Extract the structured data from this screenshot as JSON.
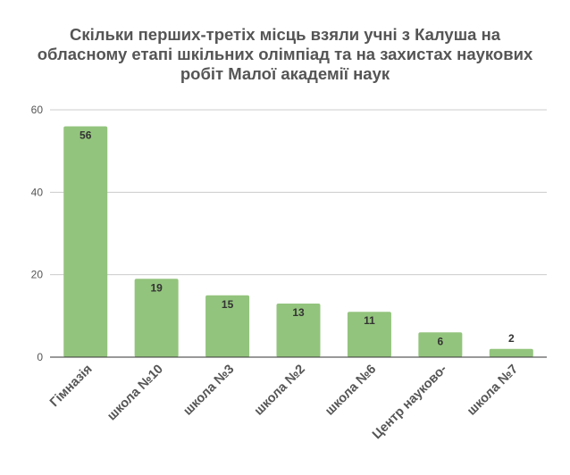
{
  "chart_data": {
    "type": "bar",
    "title_lines": [
      "Скільки перших-третіх місць взяли учні з Калуша на",
      "обласному етапі шкільних олімпіад та на захистах наукових",
      "робіт Малої академії наук"
    ],
    "categories": [
      "Гімназія",
      "школа №10",
      "школа №3",
      "школа №2",
      "школа №6",
      "Центр науково-",
      "школа №7"
    ],
    "values": [
      56,
      19,
      15,
      13,
      11,
      6,
      2
    ],
    "ylim": [
      0,
      60
    ],
    "yticks": [
      0,
      20,
      40,
      60
    ],
    "grid": true,
    "legend": "none",
    "bar_color": "#93c47d",
    "grid_color": "#cccccc",
    "axis_color": "#333333"
  }
}
